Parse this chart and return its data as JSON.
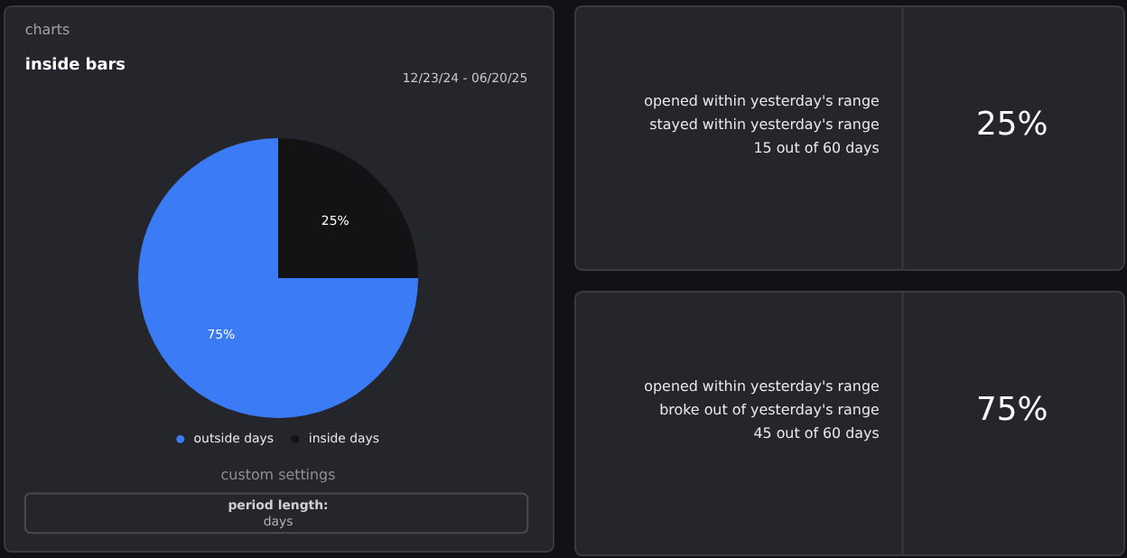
{
  "chart_data": {
    "type": "pie",
    "title": "inside bars",
    "subtitle": "12/23/24 - 06/20/25",
    "categories": [
      "outside days",
      "inside days"
    ],
    "values": [
      75,
      25
    ],
    "colors": [
      "#3b7bf6",
      "#131316"
    ],
    "value_labels": [
      "75%",
      "25%"
    ],
    "legend": "bottom",
    "annotations": [
      "charts",
      "custom settings",
      "period length:",
      "days",
      "opened within yesterday's range",
      "stayed within yesterday's range",
      "15 out of 60 days",
      "25%",
      "opened within yesterday's range",
      "broke out of yesterday's range",
      "45 out of 60 days",
      "75%"
    ]
  }
}
